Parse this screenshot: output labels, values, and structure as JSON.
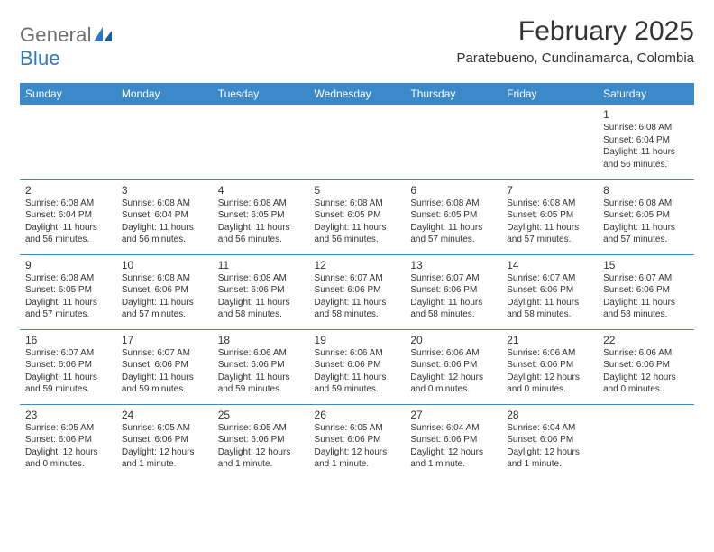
{
  "logo": {
    "text_general": "General",
    "text_blue": "Blue",
    "accent_color": "#2f78c2",
    "gray_color": "#6e6e6e"
  },
  "header": {
    "title": "February 2025",
    "subtitle": "Paratebueno, Cundinamarca, Colombia"
  },
  "styling": {
    "header_bg": "#3b89c9",
    "header_text": "#ffffff",
    "row_border": "#3b89c9",
    "body_text": "#333333",
    "title_fontsize": 30,
    "subtitle_fontsize": 15,
    "dayhead_fontsize": 12,
    "cell_fontsize": 10,
    "page_bg": "#ffffff"
  },
  "day_headers": [
    "Sunday",
    "Monday",
    "Tuesday",
    "Wednesday",
    "Thursday",
    "Friday",
    "Saturday"
  ],
  "weeks": [
    [
      {
        "blank": true
      },
      {
        "blank": true
      },
      {
        "blank": true
      },
      {
        "blank": true
      },
      {
        "blank": true
      },
      {
        "blank": true
      },
      {
        "day": "1",
        "sunrise": "Sunrise: 6:08 AM",
        "sunset": "Sunset: 6:04 PM",
        "daylight": "Daylight: 11 hours and 56 minutes."
      }
    ],
    [
      {
        "day": "2",
        "sunrise": "Sunrise: 6:08 AM",
        "sunset": "Sunset: 6:04 PM",
        "daylight": "Daylight: 11 hours and 56 minutes."
      },
      {
        "day": "3",
        "sunrise": "Sunrise: 6:08 AM",
        "sunset": "Sunset: 6:04 PM",
        "daylight": "Daylight: 11 hours and 56 minutes."
      },
      {
        "day": "4",
        "sunrise": "Sunrise: 6:08 AM",
        "sunset": "Sunset: 6:05 PM",
        "daylight": "Daylight: 11 hours and 56 minutes."
      },
      {
        "day": "5",
        "sunrise": "Sunrise: 6:08 AM",
        "sunset": "Sunset: 6:05 PM",
        "daylight": "Daylight: 11 hours and 56 minutes."
      },
      {
        "day": "6",
        "sunrise": "Sunrise: 6:08 AM",
        "sunset": "Sunset: 6:05 PM",
        "daylight": "Daylight: 11 hours and 57 minutes."
      },
      {
        "day": "7",
        "sunrise": "Sunrise: 6:08 AM",
        "sunset": "Sunset: 6:05 PM",
        "daylight": "Daylight: 11 hours and 57 minutes."
      },
      {
        "day": "8",
        "sunrise": "Sunrise: 6:08 AM",
        "sunset": "Sunset: 6:05 PM",
        "daylight": "Daylight: 11 hours and 57 minutes."
      }
    ],
    [
      {
        "day": "9",
        "sunrise": "Sunrise: 6:08 AM",
        "sunset": "Sunset: 6:05 PM",
        "daylight": "Daylight: 11 hours and 57 minutes."
      },
      {
        "day": "10",
        "sunrise": "Sunrise: 6:08 AM",
        "sunset": "Sunset: 6:06 PM",
        "daylight": "Daylight: 11 hours and 57 minutes."
      },
      {
        "day": "11",
        "sunrise": "Sunrise: 6:08 AM",
        "sunset": "Sunset: 6:06 PM",
        "daylight": "Daylight: 11 hours and 58 minutes."
      },
      {
        "day": "12",
        "sunrise": "Sunrise: 6:07 AM",
        "sunset": "Sunset: 6:06 PM",
        "daylight": "Daylight: 11 hours and 58 minutes."
      },
      {
        "day": "13",
        "sunrise": "Sunrise: 6:07 AM",
        "sunset": "Sunset: 6:06 PM",
        "daylight": "Daylight: 11 hours and 58 minutes."
      },
      {
        "day": "14",
        "sunrise": "Sunrise: 6:07 AM",
        "sunset": "Sunset: 6:06 PM",
        "daylight": "Daylight: 11 hours and 58 minutes."
      },
      {
        "day": "15",
        "sunrise": "Sunrise: 6:07 AM",
        "sunset": "Sunset: 6:06 PM",
        "daylight": "Daylight: 11 hours and 58 minutes."
      }
    ],
    [
      {
        "day": "16",
        "sunrise": "Sunrise: 6:07 AM",
        "sunset": "Sunset: 6:06 PM",
        "daylight": "Daylight: 11 hours and 59 minutes."
      },
      {
        "day": "17",
        "sunrise": "Sunrise: 6:07 AM",
        "sunset": "Sunset: 6:06 PM",
        "daylight": "Daylight: 11 hours and 59 minutes."
      },
      {
        "day": "18",
        "sunrise": "Sunrise: 6:06 AM",
        "sunset": "Sunset: 6:06 PM",
        "daylight": "Daylight: 11 hours and 59 minutes."
      },
      {
        "day": "19",
        "sunrise": "Sunrise: 6:06 AM",
        "sunset": "Sunset: 6:06 PM",
        "daylight": "Daylight: 11 hours and 59 minutes."
      },
      {
        "day": "20",
        "sunrise": "Sunrise: 6:06 AM",
        "sunset": "Sunset: 6:06 PM",
        "daylight": "Daylight: 12 hours and 0 minutes."
      },
      {
        "day": "21",
        "sunrise": "Sunrise: 6:06 AM",
        "sunset": "Sunset: 6:06 PM",
        "daylight": "Daylight: 12 hours and 0 minutes."
      },
      {
        "day": "22",
        "sunrise": "Sunrise: 6:06 AM",
        "sunset": "Sunset: 6:06 PM",
        "daylight": "Daylight: 12 hours and 0 minutes."
      }
    ],
    [
      {
        "day": "23",
        "sunrise": "Sunrise: 6:05 AM",
        "sunset": "Sunset: 6:06 PM",
        "daylight": "Daylight: 12 hours and 0 minutes."
      },
      {
        "day": "24",
        "sunrise": "Sunrise: 6:05 AM",
        "sunset": "Sunset: 6:06 PM",
        "daylight": "Daylight: 12 hours and 1 minute."
      },
      {
        "day": "25",
        "sunrise": "Sunrise: 6:05 AM",
        "sunset": "Sunset: 6:06 PM",
        "daylight": "Daylight: 12 hours and 1 minute."
      },
      {
        "day": "26",
        "sunrise": "Sunrise: 6:05 AM",
        "sunset": "Sunset: 6:06 PM",
        "daylight": "Daylight: 12 hours and 1 minute."
      },
      {
        "day": "27",
        "sunrise": "Sunrise: 6:04 AM",
        "sunset": "Sunset: 6:06 PM",
        "daylight": "Daylight: 12 hours and 1 minute."
      },
      {
        "day": "28",
        "sunrise": "Sunrise: 6:04 AM",
        "sunset": "Sunset: 6:06 PM",
        "daylight": "Daylight: 12 hours and 1 minute."
      },
      {
        "blank": true
      }
    ]
  ]
}
